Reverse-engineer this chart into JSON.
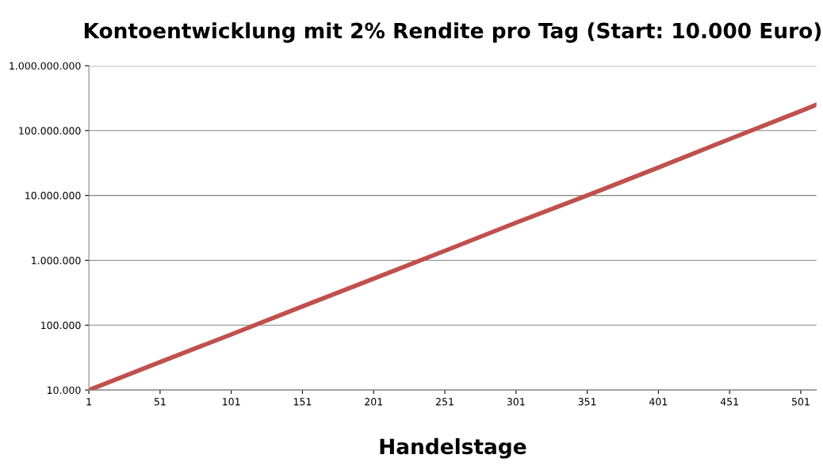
{
  "chart_data": {
    "type": "line",
    "title": "Kontoentwicklung mit 2% Rendite pro Tag (Start: 10.000 Euro)",
    "xlabel": "Handelstage",
    "x": [
      1,
      51,
      101,
      151,
      201,
      251,
      301,
      351,
      401,
      451,
      501,
      512
    ],
    "series": [
      {
        "color": "#c0504d",
        "values": [
          10000,
          27000,
          72000,
          195000,
          520000,
          1400000,
          3800000,
          10000000,
          27000000,
          74000000,
          200000000,
          250000000
        ]
      }
    ],
    "log": "y",
    "xlim": [
      1,
      512
    ],
    "xticks": [
      1,
      51,
      101,
      151,
      201,
      251,
      301,
      351,
      401,
      451,
      501
    ],
    "ylim": [
      10000,
      1000000000
    ],
    "yticks": [
      {
        "value": 10000,
        "label": "10.000"
      },
      {
        "value": 100000,
        "label": "100.000"
      },
      {
        "value": 1000000,
        "label": "1.000.000"
      },
      {
        "value": 10000000,
        "label": "10.000.000"
      },
      {
        "value": 100000000,
        "label": "100.000.000"
      },
      {
        "value": 1000000000,
        "label": "1.000.000.000"
      }
    ],
    "grid": "y",
    "legend": false,
    "marker": "none",
    "line_style": "solid"
  }
}
